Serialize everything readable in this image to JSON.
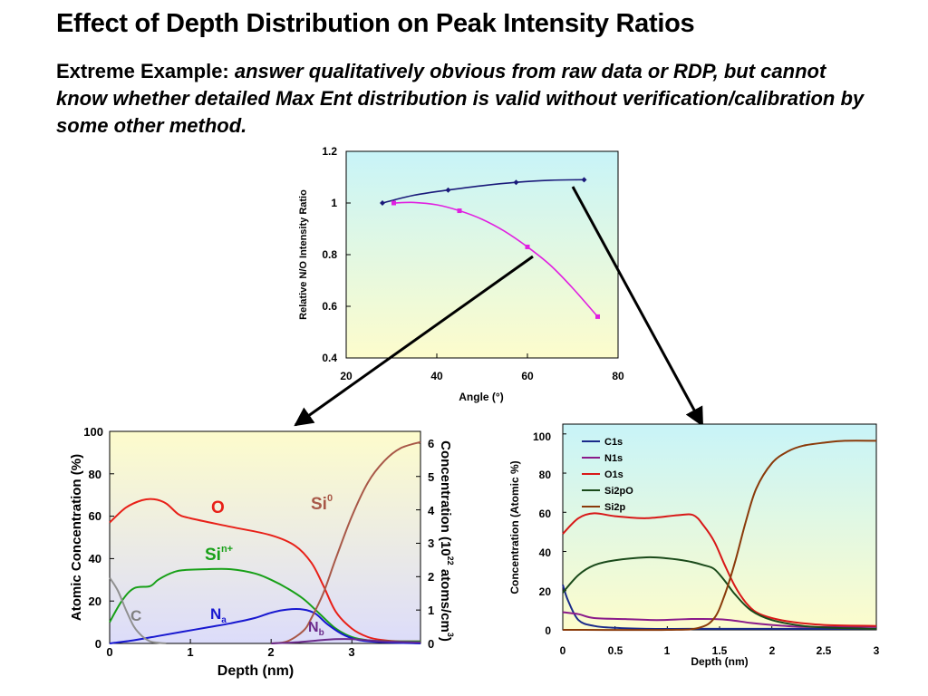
{
  "page": {
    "title": "Effect of Depth Distribution on Peak Intensity Ratios",
    "subtitle_lead": "Extreme Example: ",
    "subtitle_emphasis": "answer qualitatively obvious from raw data or RDP, but cannot know whether detailed Max Ent distribution is valid without verification/calibration by some other method."
  },
  "chart_data": [
    {
      "id": "ratio",
      "type": "line",
      "xlabel": "Angle (°)",
      "ylabel": "Relative N/O Intensity Ratio",
      "xlim": [
        20,
        80
      ],
      "ylim": [
        0.4,
        1.2
      ],
      "x_ticks": [
        "20",
        "40",
        "60",
        "80"
      ],
      "y_ticks": [
        "0.4",
        "0.6",
        "0.8",
        "1",
        "1.2"
      ],
      "grid": false,
      "background": "gradient cyan to pale yellow",
      "series": [
        {
          "color": "#1a1a7a",
          "marker": "diamond",
          "x": [
            28,
            42.5,
            57.5,
            72.5
          ],
          "y": [
            1.0,
            1.05,
            1.08,
            1.09
          ],
          "curve_x": [
            28,
            35,
            42.5,
            50,
            57.5,
            65,
            72.5
          ],
          "curve_y": [
            1.0,
            1.03,
            1.05,
            1.067,
            1.08,
            1.088,
            1.09
          ]
        },
        {
          "color": "#e020e0",
          "marker": "square",
          "x": [
            30.5,
            45,
            60,
            75.5
          ],
          "y": [
            1.0,
            0.97,
            0.83,
            0.56
          ],
          "curve_x": [
            30.5,
            35,
            40,
            45,
            50,
            55,
            60,
            65,
            70,
            75.5
          ],
          "curve_y": [
            1.0,
            1.002,
            0.993,
            0.97,
            0.937,
            0.89,
            0.83,
            0.76,
            0.67,
            0.56
          ]
        }
      ]
    },
    {
      "id": "depth-left",
      "type": "line",
      "xlabel": "Depth (nm)",
      "ylabel": "Atomic Concentration (%)",
      "y2label_lead": "Concentration (10",
      "y2label_sup": "22",
      "y2label_tail": " atoms/cm",
      "y2label_sup2": "3",
      "y2label_close": ")",
      "xlim": [
        0,
        3.85
      ],
      "ylim": [
        0,
        100
      ],
      "y2lim": [
        0,
        6.35
      ],
      "x_ticks": [
        "0",
        "1",
        "2",
        "3"
      ],
      "y_ticks": [
        "0",
        "20",
        "40",
        "60",
        "80",
        "100"
      ],
      "y2_ticks": [
        "0",
        "1",
        "2",
        "3",
        "4",
        "5",
        "6"
      ],
      "grid": false,
      "background": "gradient pale yellow to lavender",
      "series": [
        {
          "label": "O",
          "color": "#e82018",
          "x": [
            0,
            0.2,
            0.4,
            0.55,
            0.7,
            0.85,
            1.0,
            1.5,
            2.0,
            2.3,
            2.5,
            2.65,
            2.8,
            3.0,
            3.2,
            3.4,
            3.6,
            3.85
          ],
          "y": [
            57,
            64,
            67.5,
            68,
            66,
            61,
            59,
            55,
            51,
            46,
            38,
            27,
            15,
            7,
            3,
            1.5,
            1,
            1
          ]
        },
        {
          "label": "Si",
          "label_sup": "n+",
          "color": "#18a018",
          "x": [
            0,
            0.15,
            0.3,
            0.5,
            0.6,
            0.75,
            0.9,
            1.2,
            1.5,
            1.8,
            2.0,
            2.2,
            2.4,
            2.6,
            2.8,
            3.0,
            3.2,
            3.5,
            3.85
          ],
          "y": [
            10,
            20,
            26,
            27,
            30,
            33,
            34.5,
            35,
            35,
            33,
            30,
            26,
            21,
            14,
            7,
            3,
            1.5,
            1,
            1
          ]
        },
        {
          "label": "N",
          "label_sub": "a",
          "color": "#1818d0",
          "x": [
            0,
            0.3,
            0.6,
            0.9,
            1.2,
            1.5,
            1.8,
            2.0,
            2.2,
            2.4,
            2.55,
            2.7,
            2.9,
            3.1,
            3.4,
            3.85
          ],
          "y": [
            0,
            1.5,
            3.5,
            5.5,
            7.5,
            9.5,
            12,
            14.5,
            16,
            16,
            14,
            9,
            4,
            1.5,
            0.5,
            0
          ]
        },
        {
          "label": "C",
          "color": "#909090",
          "x": [
            0,
            0.1,
            0.2,
            0.3,
            0.4,
            0.5,
            0.6,
            0.7
          ],
          "y": [
            31,
            25,
            16,
            8,
            3.5,
            1,
            0.3,
            0
          ]
        },
        {
          "label": "Si",
          "label_sup": "0",
          "color": "#a85848",
          "x": [
            2.0,
            2.2,
            2.4,
            2.5,
            2.65,
            2.8,
            3.0,
            3.2,
            3.4,
            3.6,
            3.85
          ],
          "y": [
            0,
            1,
            6,
            12,
            24,
            40,
            60,
            76,
            86,
            92,
            95
          ]
        },
        {
          "label": "N",
          "label_sub": "b",
          "color": "#6a2a8a",
          "x": [
            2.0,
            2.3,
            2.6,
            2.8,
            3.0,
            3.2,
            3.4,
            3.85
          ],
          "y": [
            0,
            0.5,
            1.5,
            2,
            2,
            1.5,
            1,
            0.5
          ]
        }
      ]
    },
    {
      "id": "depth-right",
      "type": "line",
      "xlabel": "Depth (nm)",
      "ylabel": "Concentration (Atomic %)",
      "xlim": [
        0,
        3
      ],
      "ylim": [
        0,
        105
      ],
      "x_ticks": [
        "0",
        "0.5",
        "1",
        "1.5",
        "2",
        "2.5",
        "3"
      ],
      "y_ticks": [
        "0",
        "20",
        "40",
        "60",
        "80",
        "100"
      ],
      "grid": false,
      "legend": "top-left",
      "background": "gradient cyan to pale yellow",
      "series": [
        {
          "name": "C1s",
          "color": "#1a2a8a",
          "x": [
            0,
            0.05,
            0.15,
            0.3,
            0.5,
            0.8,
            1.2,
            1.6,
            2.0,
            2.5,
            3.0
          ],
          "y": [
            23,
            15,
            5,
            2,
            1,
            0.5,
            0.5,
            0.5,
            0.5,
            0.5,
            0.5
          ]
        },
        {
          "name": "N1s",
          "color": "#8a1a8a",
          "x": [
            0,
            0.15,
            0.3,
            0.6,
            0.9,
            1.2,
            1.45,
            1.6,
            1.8,
            2.0,
            2.3,
            2.6,
            3.0
          ],
          "y": [
            9,
            8,
            6,
            5.5,
            5,
            5.5,
            5.5,
            5,
            3.5,
            2.5,
            1.5,
            1.5,
            1.5
          ]
        },
        {
          "name": "O1s",
          "color": "#d81818",
          "x": [
            0,
            0.15,
            0.3,
            0.5,
            0.8,
            1.1,
            1.25,
            1.35,
            1.45,
            1.55,
            1.65,
            1.75,
            1.85,
            2.0,
            2.2,
            2.5,
            3.0
          ],
          "y": [
            49,
            57,
            59.5,
            58,
            57,
            58.5,
            58.5,
            53,
            45,
            33,
            22,
            14,
            9,
            6,
            4,
            2.5,
            2
          ]
        },
        {
          "name": "Si2pO",
          "color": "#1a4a1a",
          "x": [
            0,
            0.15,
            0.3,
            0.5,
            0.8,
            1.0,
            1.2,
            1.35,
            1.45,
            1.55,
            1.65,
            1.8,
            2.0,
            2.3,
            2.6,
            3.0
          ],
          "y": [
            19,
            28,
            33,
            35.5,
            37,
            36.5,
            35,
            33,
            31,
            25,
            18,
            10,
            5,
            2,
            1,
            0.5
          ]
        },
        {
          "name": "Si2p",
          "color": "#8a3a0a",
          "x": [
            0,
            1.0,
            1.3,
            1.45,
            1.55,
            1.65,
            1.75,
            1.85,
            2.0,
            2.15,
            2.3,
            2.5,
            2.7,
            3.0
          ],
          "y": [
            0,
            0,
            1,
            6,
            18,
            35,
            55,
            72,
            85,
            91,
            94,
            95.5,
            96.5,
            96.5
          ]
        }
      ]
    }
  ]
}
